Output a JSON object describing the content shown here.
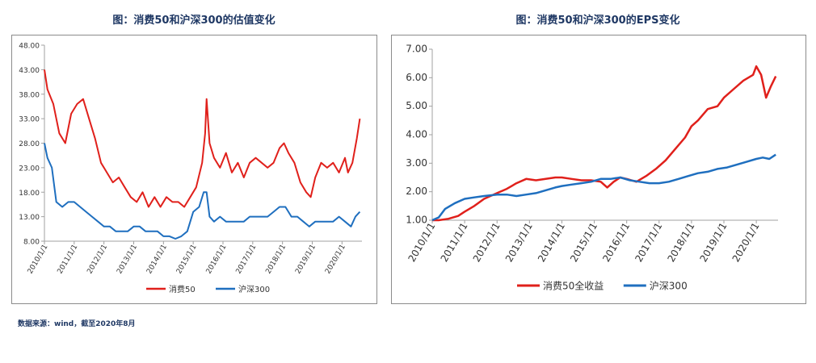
{
  "chart_titles": {
    "left": "图：消费50和沪深300的估值变化",
    "right": "图：消费50和沪深300的EPS变化"
  },
  "source_note": "数据来源：wind，截至2020年8月",
  "colors": {
    "consumer": "#e0201b",
    "csi300": "#1f6fbf",
    "axis": "#a0a0a0",
    "title": "#1f3864"
  },
  "chart_data": [
    {
      "type": "line",
      "title": "图：消费50和沪深300的估值变化",
      "xlabel": "",
      "ylabel": "",
      "ylim": [
        8,
        48
      ],
      "yticks": [
        "48.00",
        "43.00",
        "38.00",
        "33.00",
        "28.00",
        "23.00",
        "18.00",
        "13.00",
        "8.00"
      ],
      "xlim": [
        2010.0,
        2020.67
      ],
      "xticks": [
        "2010/1/1",
        "2011/1/1",
        "2012/1/1",
        "2013/1/1",
        "2014/1/1",
        "2015/1/1",
        "2016/1/1",
        "2017/1/1",
        "2018/1/1",
        "2019/1/1",
        "2020/1/1"
      ],
      "legend": "bottom",
      "series": [
        {
          "name": "消费50",
          "color": "#e0201b",
          "x": [
            2010.0,
            2010.1,
            2010.3,
            2010.5,
            2010.7,
            2010.9,
            2011.1,
            2011.3,
            2011.5,
            2011.7,
            2011.9,
            2012.1,
            2012.3,
            2012.5,
            2012.7,
            2012.9,
            2013.1,
            2013.3,
            2013.5,
            2013.7,
            2013.9,
            2014.1,
            2014.3,
            2014.5,
            2014.7,
            2014.9,
            2015.1,
            2015.3,
            2015.4,
            2015.45,
            2015.55,
            2015.7,
            2015.9,
            2016.1,
            2016.3,
            2016.5,
            2016.7,
            2016.9,
            2017.1,
            2017.3,
            2017.5,
            2017.7,
            2017.9,
            2018.05,
            2018.2,
            2018.4,
            2018.6,
            2018.8,
            2018.95,
            2019.1,
            2019.3,
            2019.5,
            2019.7,
            2019.9,
            2020.1,
            2020.2,
            2020.35,
            2020.5,
            2020.6
          ],
          "y": [
            43,
            39,
            36,
            30,
            28,
            34,
            36,
            37,
            33,
            29,
            24,
            22,
            20,
            21,
            19,
            17,
            16,
            18,
            15,
            17,
            15,
            17,
            16,
            16,
            15,
            17,
            19,
            24,
            30,
            37,
            28,
            25,
            23,
            26,
            22,
            24,
            21,
            24,
            25,
            24,
            23,
            24,
            27,
            28,
            26,
            24,
            20,
            18,
            17,
            21,
            24,
            23,
            24,
            22,
            25,
            22,
            24,
            29,
            33
          ]
        },
        {
          "name": "沪深300",
          "color": "#1f6fbf",
          "x": [
            2010.0,
            2010.1,
            2010.25,
            2010.4,
            2010.6,
            2010.8,
            2011.0,
            2011.2,
            2011.4,
            2011.6,
            2011.8,
            2012.0,
            2012.2,
            2012.4,
            2012.6,
            2012.8,
            2013.0,
            2013.2,
            2013.4,
            2013.6,
            2013.8,
            2014.0,
            2014.2,
            2014.4,
            2014.6,
            2014.8,
            2015.0,
            2015.2,
            2015.35,
            2015.45,
            2015.55,
            2015.7,
            2015.9,
            2016.1,
            2016.3,
            2016.5,
            2016.7,
            2016.9,
            2017.1,
            2017.3,
            2017.5,
            2017.7,
            2017.9,
            2018.1,
            2018.3,
            2018.5,
            2018.7,
            2018.9,
            2019.1,
            2019.3,
            2019.5,
            2019.7,
            2019.9,
            2020.1,
            2020.3,
            2020.45,
            2020.6
          ],
          "y": [
            28,
            25,
            23,
            16,
            15,
            16,
            16,
            15,
            14,
            13,
            12,
            11,
            11,
            10,
            10,
            10,
            11,
            11,
            10,
            10,
            10,
            9,
            9,
            8.5,
            9,
            10,
            14,
            15,
            18,
            18,
            13,
            12,
            13,
            12,
            12,
            12,
            12,
            13,
            13,
            13,
            13,
            14,
            15,
            15,
            13,
            13,
            12,
            11,
            12,
            12,
            12,
            12,
            13,
            12,
            11,
            13,
            14
          ]
        }
      ]
    },
    {
      "type": "line",
      "title": "图：消费50和沪深300的EPS变化",
      "xlabel": "",
      "ylabel": "",
      "ylim": [
        1,
        7
      ],
      "yticks": [
        "7.00",
        "6.00",
        "5.00",
        "4.00",
        "3.00",
        "2.00",
        "1.00"
      ],
      "xlim": [
        2010.0,
        2020.67
      ],
      "xticks": [
        "2010/1/1",
        "2011/1/1",
        "2012/1/1",
        "2013/1/1",
        "2014/1/1",
        "2015/1/1",
        "2016/1/1",
        "2017/1/1",
        "2018/1/1",
        "2019/1/1",
        "2020/1/1"
      ],
      "legend": "bottom",
      "series": [
        {
          "name": "消费50全收益",
          "color": "#e0201b",
          "x": [
            2010.0,
            2010.2,
            2010.5,
            2010.8,
            2011.0,
            2011.3,
            2011.6,
            2012.0,
            2012.3,
            2012.6,
            2012.9,
            2013.2,
            2013.5,
            2013.8,
            2014.0,
            2014.3,
            2014.6,
            2014.9,
            2015.2,
            2015.4,
            2015.6,
            2015.8,
            2016.0,
            2016.3,
            2016.6,
            2016.9,
            2017.2,
            2017.5,
            2017.8,
            2018.0,
            2018.2,
            2018.5,
            2018.8,
            2019.0,
            2019.3,
            2019.6,
            2019.9,
            2020.0,
            2020.15,
            2020.3,
            2020.45,
            2020.6
          ],
          "y": [
            1.0,
            1.0,
            1.05,
            1.15,
            1.3,
            1.5,
            1.75,
            1.95,
            2.1,
            2.3,
            2.45,
            2.4,
            2.45,
            2.5,
            2.5,
            2.45,
            2.4,
            2.4,
            2.35,
            2.15,
            2.35,
            2.5,
            2.45,
            2.35,
            2.55,
            2.8,
            3.1,
            3.5,
            3.9,
            4.3,
            4.5,
            4.9,
            5.0,
            5.3,
            5.6,
            5.9,
            6.1,
            6.4,
            6.1,
            5.3,
            5.7,
            6.05
          ]
        },
        {
          "name": "沪深300",
          "color": "#1f6fbf",
          "x": [
            2010.0,
            2010.2,
            2010.4,
            2010.7,
            2011.0,
            2011.3,
            2011.6,
            2012.0,
            2012.3,
            2012.6,
            2012.9,
            2013.2,
            2013.5,
            2013.8,
            2014.0,
            2014.3,
            2014.6,
            2014.9,
            2015.2,
            2015.5,
            2015.8,
            2016.1,
            2016.4,
            2016.7,
            2017.0,
            2017.3,
            2017.6,
            2017.9,
            2018.2,
            2018.5,
            2018.8,
            2019.1,
            2019.4,
            2019.7,
            2020.0,
            2020.2,
            2020.4,
            2020.6
          ],
          "y": [
            1.0,
            1.1,
            1.4,
            1.6,
            1.75,
            1.8,
            1.85,
            1.9,
            1.9,
            1.85,
            1.9,
            1.95,
            2.05,
            2.15,
            2.2,
            2.25,
            2.3,
            2.35,
            2.45,
            2.45,
            2.5,
            2.4,
            2.35,
            2.3,
            2.3,
            2.35,
            2.45,
            2.55,
            2.65,
            2.7,
            2.8,
            2.85,
            2.95,
            3.05,
            3.15,
            3.2,
            3.15,
            3.3
          ]
        }
      ]
    }
  ]
}
